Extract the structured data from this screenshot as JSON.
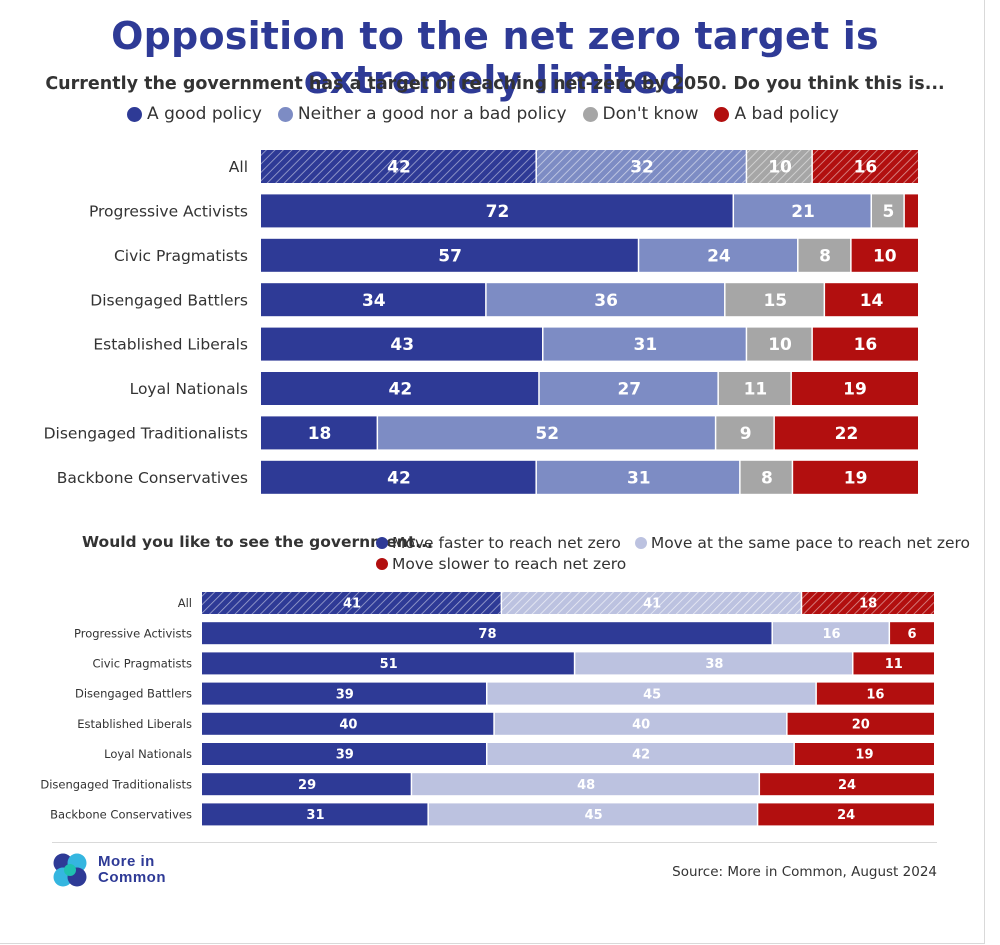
{
  "title": "Opposition to the net zero target is extremely limited",
  "colors": {
    "navy": "#2e3a96",
    "title": "#2e3a96",
    "mid_blue": "#7d8cc4",
    "light_blue": "#bcc2e0",
    "grey": "#a6a6a6",
    "red": "#b20f0f"
  },
  "chart_data": [
    {
      "type": "bar",
      "orientation": "horizontal",
      "stacked": true,
      "question": "Currently the government has a target of reaching net-zero by 2050. Do you think this is...",
      "categories": [
        "All",
        "Progressive Activists",
        "Civic Pragmatists",
        "Disengaged Battlers",
        "Established Liberals",
        "Loyal Nationals",
        "Disengaged Traditionalists",
        "Backbone Conservatives"
      ],
      "series": [
        {
          "name": "A good policy",
          "color": "#2e3a96",
          "values": [
            42,
            72,
            57,
            34,
            43,
            42,
            18,
            42
          ]
        },
        {
          "name": "Neither a good nor a bad policy",
          "color": "#7d8cc4",
          "values": [
            32,
            21,
            24,
            36,
            31,
            27,
            52,
            31
          ]
        },
        {
          "name": "Don't know",
          "color": "#a6a6a6",
          "values": [
            10,
            5,
            8,
            15,
            10,
            11,
            9,
            8
          ]
        },
        {
          "name": "A bad policy",
          "color": "#b20f0f",
          "values": [
            16,
            2,
            10,
            14,
            16,
            19,
            22,
            19
          ]
        }
      ],
      "unlabeled_values": [
        [
          1,
          3
        ]
      ],
      "hatched_categories": [
        "All"
      ]
    },
    {
      "type": "bar",
      "orientation": "horizontal",
      "stacked": true,
      "question": "Would you like to see the government...",
      "categories": [
        "All",
        "Progressive Activists",
        "Civic Pragmatists",
        "Disengaged Battlers",
        "Established Liberals",
        "Loyal Nationals",
        "Disengaged Traditionalists",
        "Backbone Conservatives"
      ],
      "series": [
        {
          "name": "Move faster to reach net zero",
          "color": "#2e3a96",
          "values": [
            41,
            78,
            51,
            39,
            40,
            39,
            29,
            31
          ]
        },
        {
          "name": "Move at the same pace to reach net zero",
          "color": "#bcc2e0",
          "values": [
            41,
            16,
            38,
            45,
            40,
            42,
            48,
            45
          ]
        },
        {
          "name": "Move slower to reach net zero",
          "color": "#b20f0f",
          "values": [
            18,
            6,
            11,
            16,
            20,
            19,
            24,
            24
          ]
        }
      ],
      "hatched_categories": [
        "All"
      ]
    }
  ],
  "logo": {
    "line1": "More in",
    "line2": "Common"
  },
  "source": "Source: More in Common, August 2024"
}
